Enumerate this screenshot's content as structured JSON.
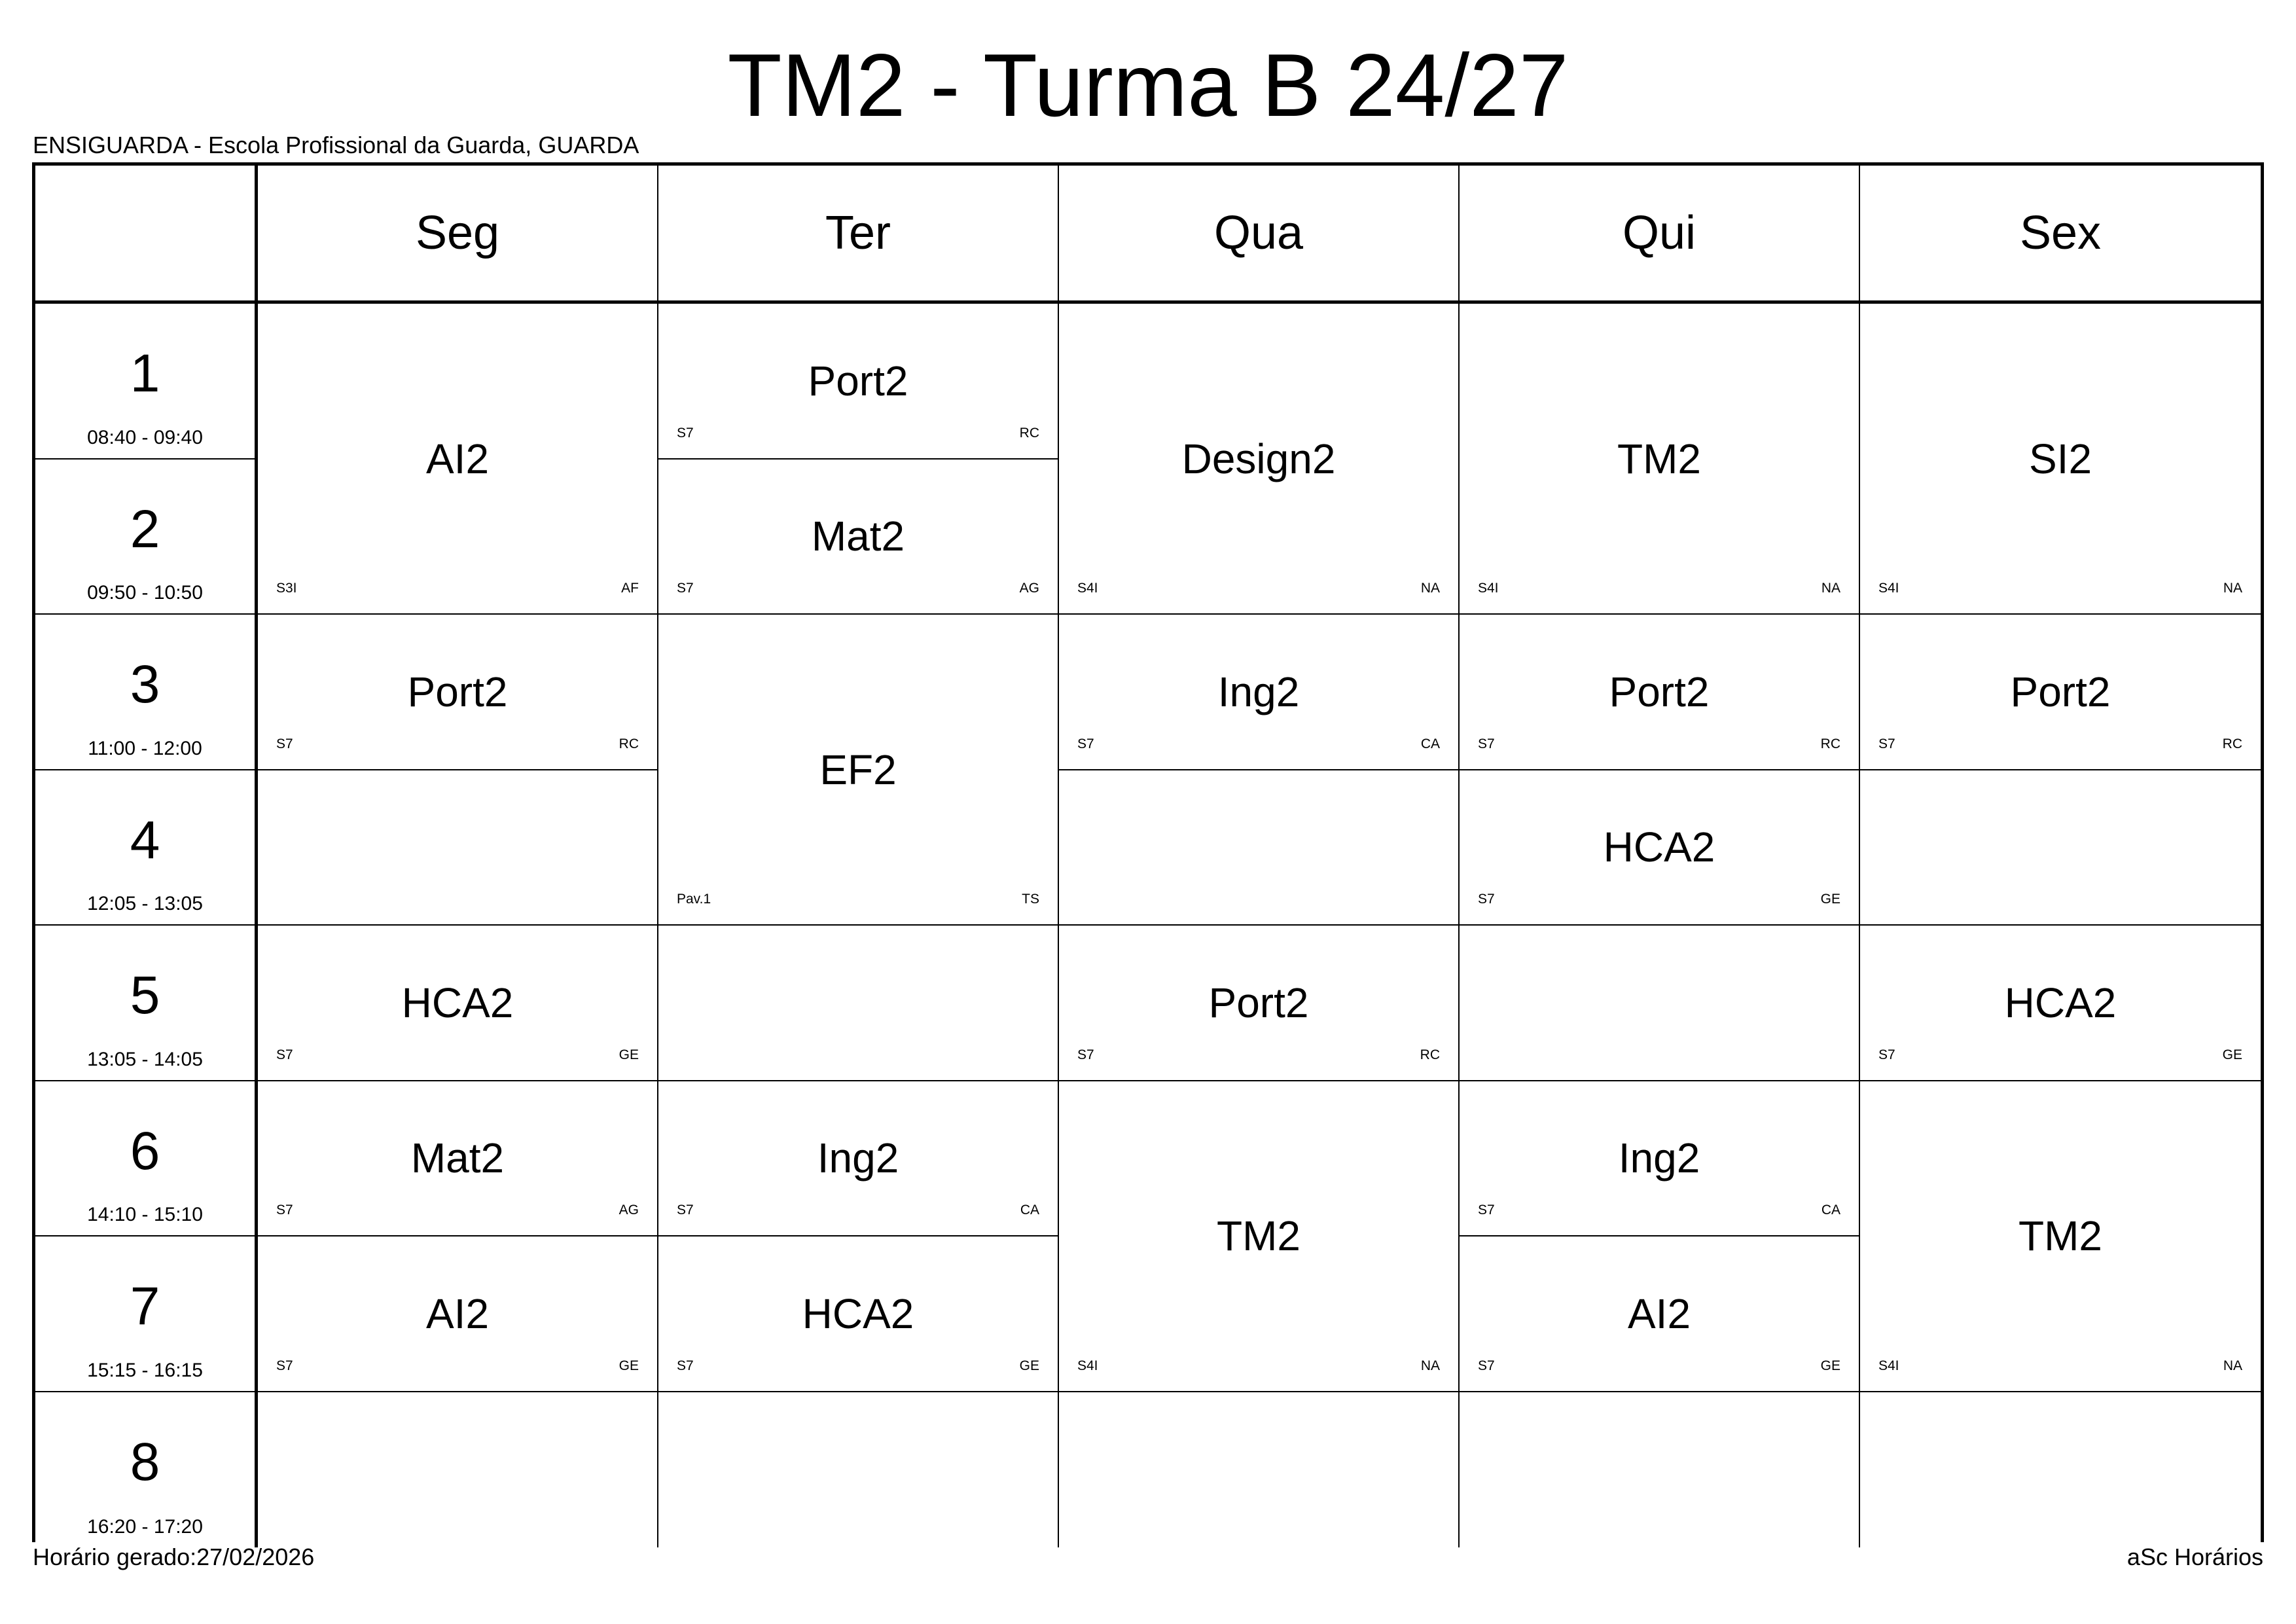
{
  "title": "TM2 - Turma B 24/27",
  "school": "ENSIGUARDA - Escola Profissional da Guarda, GUARDA",
  "footer": {
    "generated": "Horário gerado:27/02/2026",
    "software": "aSc Horários"
  },
  "days": [
    "Seg",
    "Ter",
    "Qua",
    "Qui",
    "Sex"
  ],
  "periods": [
    {
      "num": "1",
      "time": "08:40 - 09:40"
    },
    {
      "num": "2",
      "time": "09:50 - 10:50"
    },
    {
      "num": "3",
      "time": "11:00 - 12:00"
    },
    {
      "num": "4",
      "time": "12:05 - 13:05"
    },
    {
      "num": "5",
      "time": "13:05 - 14:05"
    },
    {
      "num": "6",
      "time": "14:10 - 15:10"
    },
    {
      "num": "7",
      "time": "15:15 - 16:15"
    },
    {
      "num": "8",
      "time": "16:20 - 17:20"
    }
  ],
  "lessons": [
    {
      "day": 0,
      "period": 1,
      "span": 2,
      "subject": "AI2",
      "room": "S3I",
      "teacher": "AF"
    },
    {
      "day": 0,
      "period": 3,
      "span": 1,
      "subject": "Port2",
      "room": "S7",
      "teacher": "RC"
    },
    {
      "day": 0,
      "period": 5,
      "span": 1,
      "subject": "HCA2",
      "room": "S7",
      "teacher": "GE"
    },
    {
      "day": 0,
      "period": 6,
      "span": 1,
      "subject": "Mat2",
      "room": "S7",
      "teacher": "AG"
    },
    {
      "day": 0,
      "period": 7,
      "span": 1,
      "subject": "AI2",
      "room": "S7",
      "teacher": "GE"
    },
    {
      "day": 1,
      "period": 1,
      "span": 1,
      "subject": "Port2",
      "room": "S7",
      "teacher": "RC"
    },
    {
      "day": 1,
      "period": 2,
      "span": 1,
      "subject": "Mat2",
      "room": "S7",
      "teacher": "AG"
    },
    {
      "day": 1,
      "period": 3,
      "span": 2,
      "subject": "EF2",
      "room": "Pav.1",
      "teacher": "TS"
    },
    {
      "day": 1,
      "period": 6,
      "span": 1,
      "subject": "Ing2",
      "room": "S7",
      "teacher": "CA"
    },
    {
      "day": 1,
      "period": 7,
      "span": 1,
      "subject": "HCA2",
      "room": "S7",
      "teacher": "GE"
    },
    {
      "day": 2,
      "period": 1,
      "span": 2,
      "subject": "Design2",
      "room": "S4I",
      "teacher": "NA"
    },
    {
      "day": 2,
      "period": 3,
      "span": 1,
      "subject": "Ing2",
      "room": "S7",
      "teacher": "CA"
    },
    {
      "day": 2,
      "period": 5,
      "span": 1,
      "subject": "Port2",
      "room": "S7",
      "teacher": "RC"
    },
    {
      "day": 2,
      "period": 6,
      "span": 2,
      "subject": "TM2",
      "room": "S4I",
      "teacher": "NA"
    },
    {
      "day": 3,
      "period": 1,
      "span": 2,
      "subject": "TM2",
      "room": "S4I",
      "teacher": "NA"
    },
    {
      "day": 3,
      "period": 3,
      "span": 1,
      "subject": "Port2",
      "room": "S7",
      "teacher": "RC"
    },
    {
      "day": 3,
      "period": 4,
      "span": 1,
      "subject": "HCA2",
      "room": "S7",
      "teacher": "GE"
    },
    {
      "day": 3,
      "period": 6,
      "span": 1,
      "subject": "Ing2",
      "room": "S7",
      "teacher": "CA"
    },
    {
      "day": 3,
      "period": 7,
      "span": 1,
      "subject": "AI2",
      "room": "S7",
      "teacher": "GE"
    },
    {
      "day": 4,
      "period": 1,
      "span": 2,
      "subject": "SI2",
      "room": "S4I",
      "teacher": "NA"
    },
    {
      "day": 4,
      "period": 3,
      "span": 1,
      "subject": "Port2",
      "room": "S7",
      "teacher": "RC"
    },
    {
      "day": 4,
      "period": 5,
      "span": 1,
      "subject": "HCA2",
      "room": "S7",
      "teacher": "GE"
    },
    {
      "day": 4,
      "period": 6,
      "span": 2,
      "subject": "TM2",
      "room": "S4I",
      "teacher": "NA"
    }
  ]
}
